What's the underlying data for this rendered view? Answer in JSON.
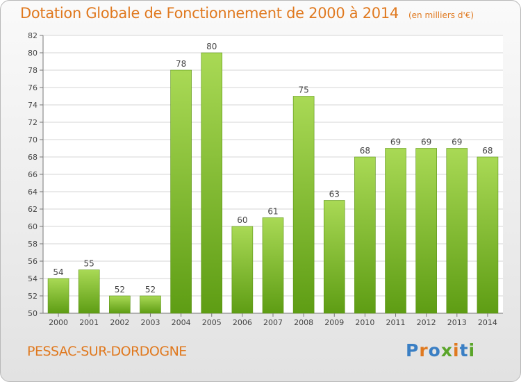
{
  "header": {
    "title": "Dotation Globale de Fonctionnement de 2000 à 2014",
    "unit_note": "(en milliers d'€)"
  },
  "footer": {
    "commune": "PESSAC-SUR-DORDOGNE",
    "logo_text": "Proxiti"
  },
  "colors": {
    "accent": "#e0791f",
    "bar_top": "#a9d955",
    "bar_bottom": "#5e9d14",
    "logo_letters": [
      "#3a7fc4",
      "#e0791f",
      "#3a7fc4",
      "#5aa52a",
      "#e0791f",
      "#3a7fc4",
      "#5aa52a"
    ]
  },
  "chart_data": {
    "type": "bar",
    "title": "Dotation Globale de Fonctionnement de 2000 à 2014",
    "subtitle": "(en milliers d'€)",
    "categories": [
      "2000",
      "2001",
      "2002",
      "2003",
      "2004",
      "2005",
      "2006",
      "2007",
      "2008",
      "2009",
      "2010",
      "2011",
      "2012",
      "2013",
      "2014"
    ],
    "values": [
      54,
      55,
      52,
      52,
      78,
      80,
      60,
      61,
      75,
      63,
      68,
      69,
      69,
      69,
      68
    ],
    "xlabel": "",
    "ylabel": "",
    "ylim": [
      50,
      82
    ],
    "yticks": [
      50,
      52,
      54,
      56,
      58,
      60,
      62,
      64,
      66,
      68,
      70,
      72,
      74,
      76,
      78,
      80,
      82
    ],
    "grid": true,
    "data_labels": true
  }
}
